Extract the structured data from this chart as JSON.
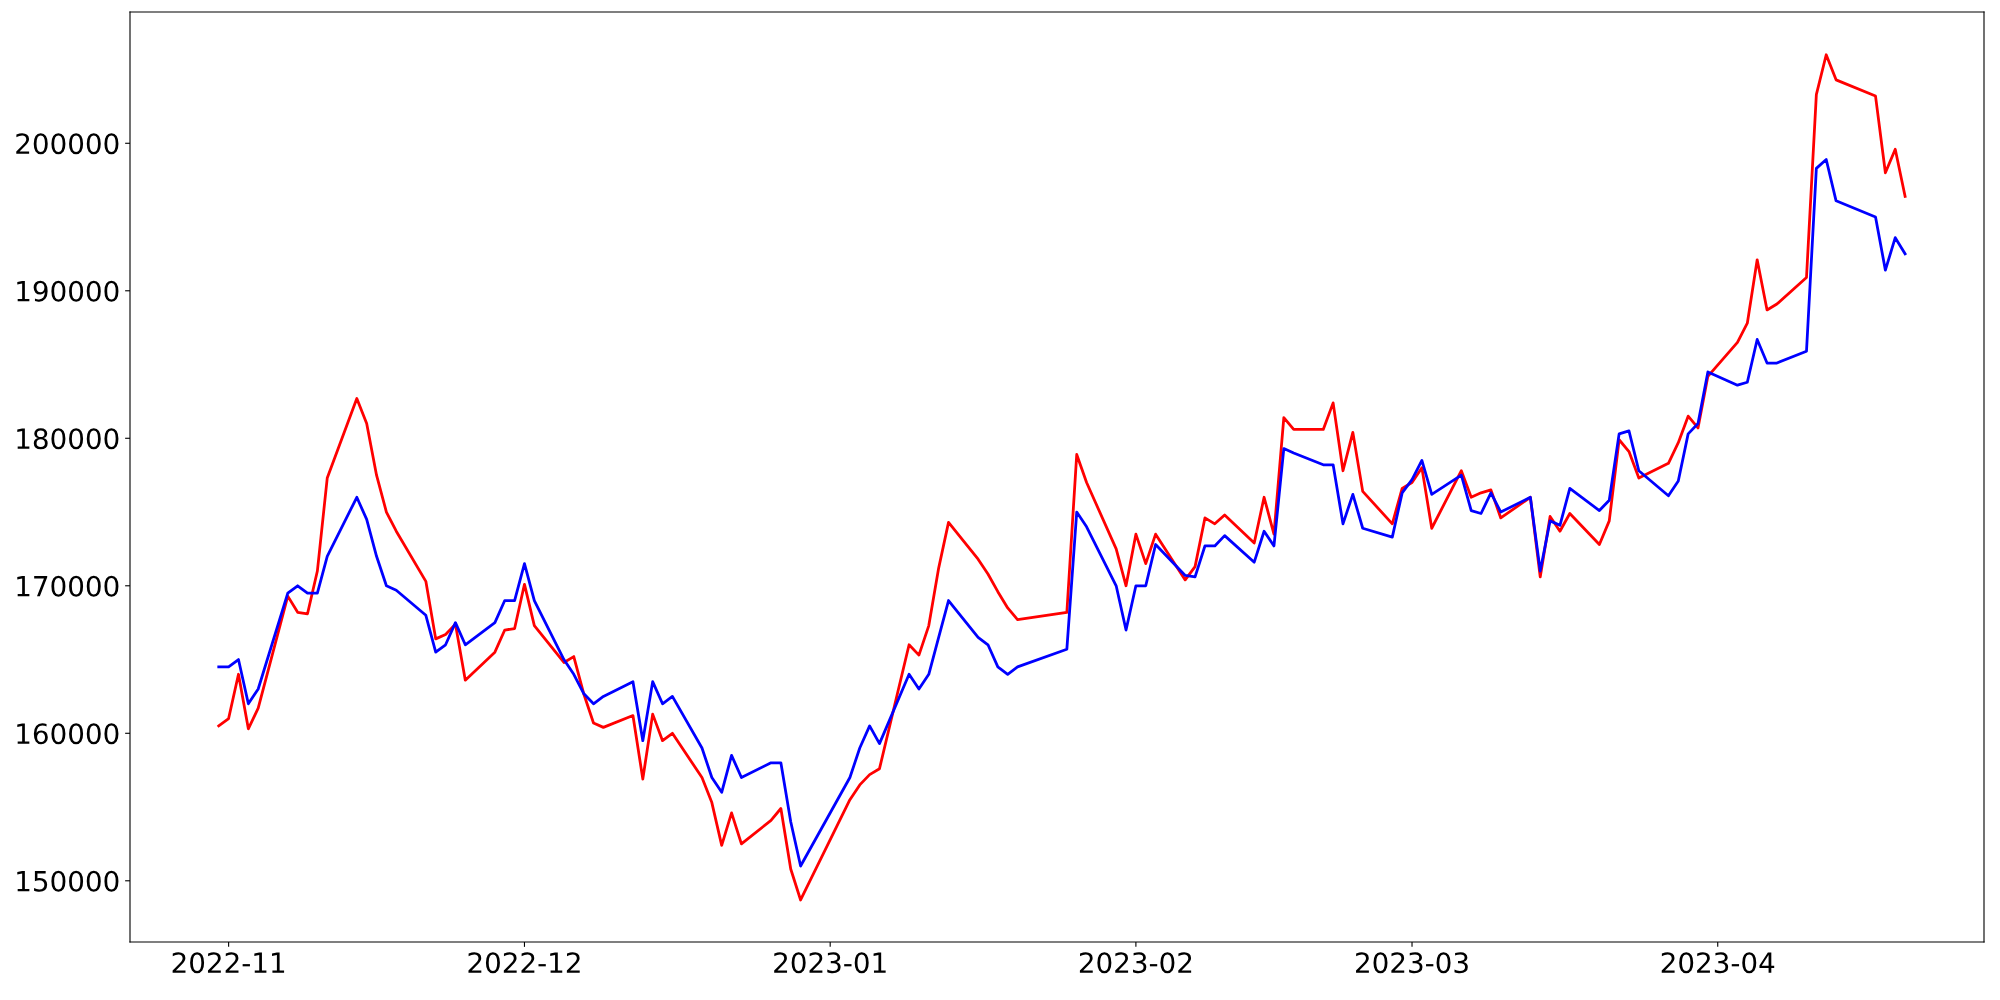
{
  "chart_data": {
    "type": "line",
    "x": [
      "2022-10-31",
      "2022-11-01",
      "2022-11-02",
      "2022-11-03",
      "2022-11-04",
      "2022-11-07",
      "2022-11-08",
      "2022-11-09",
      "2022-11-10",
      "2022-11-11",
      "2022-11-14",
      "2022-11-15",
      "2022-11-16",
      "2022-11-17",
      "2022-11-18",
      "2022-11-21",
      "2022-11-22",
      "2022-11-23",
      "2022-11-24",
      "2022-11-25",
      "2022-11-28",
      "2022-11-29",
      "2022-11-30",
      "2022-12-01",
      "2022-12-02",
      "2022-12-05",
      "2022-12-06",
      "2022-12-07",
      "2022-12-08",
      "2022-12-09",
      "2022-12-12",
      "2022-12-13",
      "2022-12-14",
      "2022-12-15",
      "2022-12-16",
      "2022-12-19",
      "2022-12-20",
      "2022-12-21",
      "2022-12-22",
      "2022-12-23",
      "2022-12-26",
      "2022-12-27",
      "2022-12-28",
      "2022-12-29",
      "2023-01-03",
      "2023-01-04",
      "2023-01-05",
      "2023-01-06",
      "2023-01-09",
      "2023-01-10",
      "2023-01-11",
      "2023-01-12",
      "2023-01-13",
      "2023-01-16",
      "2023-01-17",
      "2023-01-18",
      "2023-01-19",
      "2023-01-20",
      "2023-01-25",
      "2023-01-26",
      "2023-01-27",
      "2023-01-30",
      "2023-01-31",
      "2023-02-01",
      "2023-02-02",
      "2023-02-03",
      "2023-02-06",
      "2023-02-07",
      "2023-02-08",
      "2023-02-09",
      "2023-02-10",
      "2023-02-13",
      "2023-02-14",
      "2023-02-15",
      "2023-02-16",
      "2023-02-17",
      "2023-02-20",
      "2023-02-21",
      "2023-02-22",
      "2023-02-23",
      "2023-02-24",
      "2023-02-27",
      "2023-02-28",
      "2023-03-01",
      "2023-03-02",
      "2023-03-03",
      "2023-03-06",
      "2023-03-07",
      "2023-03-08",
      "2023-03-09",
      "2023-03-10",
      "2023-03-13",
      "2023-03-14",
      "2023-03-15",
      "2023-03-16",
      "2023-03-17",
      "2023-03-20",
      "2023-03-21",
      "2023-03-22",
      "2023-03-23",
      "2023-03-24",
      "2023-03-27",
      "2023-03-28",
      "2023-03-29",
      "2023-03-30",
      "2023-03-31",
      "2023-04-03",
      "2023-04-04",
      "2023-04-05",
      "2023-04-06",
      "2023-04-07",
      "2023-04-10",
      "2023-04-11",
      "2023-04-12",
      "2023-04-13",
      "2023-04-17",
      "2023-04-18",
      "2023-04-19",
      "2023-04-20"
    ],
    "series": [
      {
        "color": "#ff0000",
        "values": [
          160500,
          161000,
          164000,
          160300,
          161700,
          169300,
          168200,
          168100,
          171000,
          177300,
          182700,
          181000,
          177500,
          175000,
          173700,
          170300,
          166400,
          166700,
          167400,
          163600,
          165500,
          167000,
          167100,
          170100,
          167300,
          164800,
          165200,
          162700,
          160700,
          160400,
          161200,
          156900,
          161300,
          159500,
          160000,
          157000,
          155300,
          152400,
          154600,
          152500,
          154100,
          154900,
          150800,
          148700,
          155500,
          156500,
          157200,
          157600,
          166000,
          165300,
          167300,
          171200,
          174300,
          171800,
          170800,
          169600,
          168500,
          167700,
          168200,
          178900,
          177000,
          172500,
          170000,
          173500,
          171500,
          173500,
          170400,
          171300,
          174600,
          174200,
          174800,
          172900,
          176000,
          173500,
          181400,
          180600,
          180600,
          182400,
          177800,
          180400,
          176400,
          174200,
          176600,
          177000,
          178000,
          173900,
          177800,
          176000,
          176300,
          176500,
          174600,
          176000,
          170600,
          174700,
          173700,
          174900,
          172800,
          174400,
          179900,
          179100,
          177300,
          178300,
          179700,
          181500,
          180700,
          184200,
          186500,
          187800,
          192100,
          188700,
          189100,
          190900,
          203300,
          206000,
          204300,
          203200,
          198000,
          199600,
          196400
        ]
      },
      {
        "color": "#0000ff",
        "values": [
          164500,
          164500,
          165000,
          162000,
          163000,
          169500,
          170000,
          169500,
          169500,
          172000,
          176000,
          174500,
          172000,
          170000,
          169700,
          168000,
          165500,
          166000,
          167500,
          166000,
          167500,
          169000,
          169000,
          171500,
          169000,
          165000,
          164000,
          162700,
          162000,
          162500,
          163500,
          159500,
          163500,
          162000,
          162500,
          159000,
          157000,
          156000,
          158500,
          157000,
          158000,
          158000,
          154000,
          151000,
          157000,
          159000,
          160500,
          159300,
          164000,
          163000,
          164000,
          166500,
          169000,
          166500,
          166000,
          164500,
          164000,
          164500,
          165700,
          175000,
          174000,
          170000,
          167000,
          170000,
          170000,
          172800,
          170700,
          170600,
          172700,
          172700,
          173400,
          171600,
          173700,
          172700,
          179300,
          179000,
          178200,
          178200,
          174200,
          176200,
          173900,
          173300,
          176300,
          177200,
          178500,
          176200,
          177500,
          175100,
          174900,
          176300,
          175000,
          176000,
          171000,
          174400,
          174100,
          176600,
          175100,
          175800,
          180300,
          180500,
          177800,
          176100,
          177100,
          180300,
          181000,
          184500,
          183600,
          183800,
          186700,
          185100,
          185100,
          185900,
          198300,
          198900,
          196100,
          195000,
          191400,
          193600,
          192500
        ]
      }
    ],
    "xlim": [
      "2022-10-22",
      "2023-04-28"
    ],
    "xticks": [
      {
        "value": "2022-11-01",
        "label": "2022-11"
      },
      {
        "value": "2022-12-01",
        "label": "2022-12"
      },
      {
        "value": "2023-01-01",
        "label": "2023-01"
      },
      {
        "value": "2023-02-01",
        "label": "2023-02"
      },
      {
        "value": "2023-03-01",
        "label": "2023-03"
      },
      {
        "value": "2023-04-01",
        "label": "2023-04"
      }
    ],
    "ylim": [
      145850,
      208900
    ],
    "yticks": [
      150000,
      160000,
      170000,
      180000,
      190000,
      200000
    ],
    "grid": false
  }
}
